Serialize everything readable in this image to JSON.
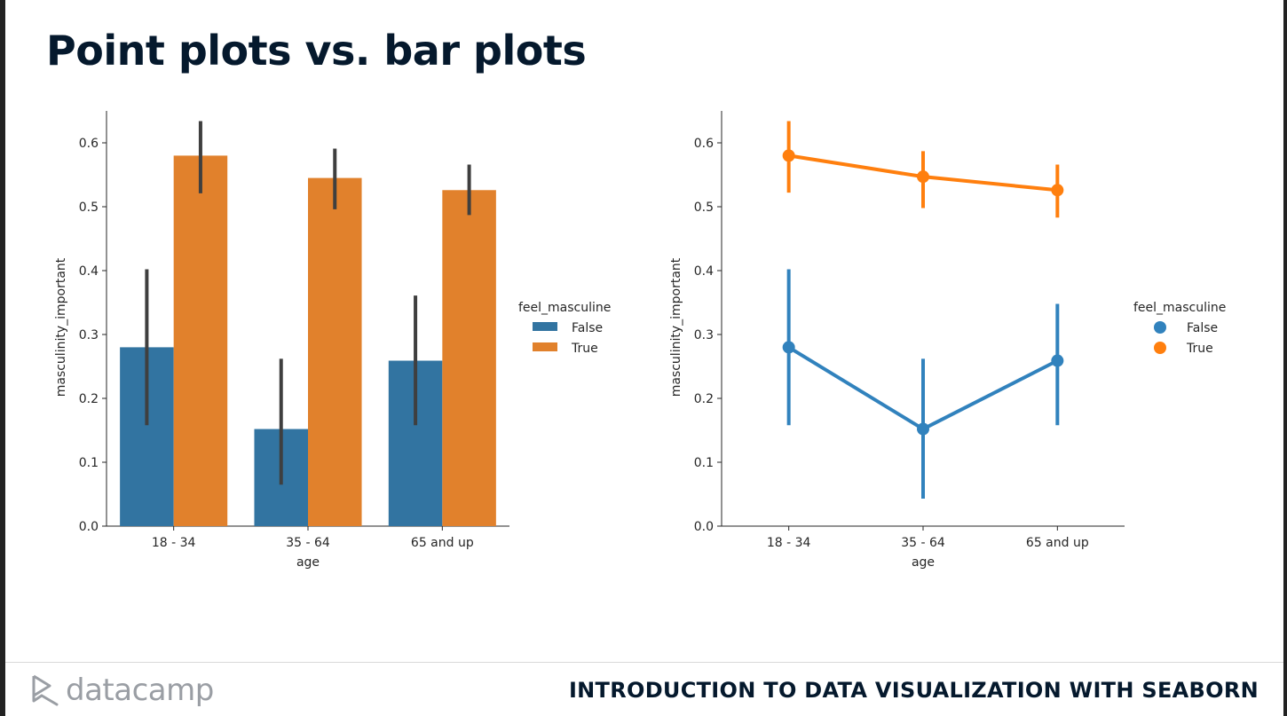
{
  "slide": {
    "title": "Point plots vs. bar plots",
    "brand": "datacamp",
    "course": "INTRODUCTION TO DATA VISUALIZATION WITH SEABORN"
  },
  "colors": {
    "false": "#3274a1",
    "true": "#e1812c",
    "error": "#3f3f3f",
    "pointFalse": "#3182bd",
    "pointTrue": "#ff7f0e"
  },
  "chart_data": [
    {
      "type": "bar",
      "categories": [
        "18 - 34",
        "35 - 64",
        "65 and up"
      ],
      "xlabel": "age",
      "ylabel": "masculinity_important",
      "ylim": [
        0,
        0.65
      ],
      "yticks": [
        "0.0",
        "0.1",
        "0.2",
        "0.3",
        "0.4",
        "0.5",
        "0.6"
      ],
      "legend": {
        "title": "feel_masculine",
        "position": "right"
      },
      "series": [
        {
          "name": "False",
          "values": [
            0.28,
            0.152,
            0.259
          ],
          "ci_low": [
            0.158,
            0.065,
            0.158
          ],
          "ci_high": [
            0.402,
            0.262,
            0.361
          ]
        },
        {
          "name": "True",
          "values": [
            0.58,
            0.545,
            0.526
          ],
          "ci_low": [
            0.521,
            0.496,
            0.487
          ],
          "ci_high": [
            0.634,
            0.591,
            0.566
          ]
        }
      ]
    },
    {
      "type": "line",
      "categories": [
        "18 - 34",
        "35 - 64",
        "65 and up"
      ],
      "xlabel": "age",
      "ylabel": "masculinity_important",
      "ylim": [
        0,
        0.65
      ],
      "yticks": [
        "0.0",
        "0.1",
        "0.2",
        "0.3",
        "0.4",
        "0.5",
        "0.6"
      ],
      "legend": {
        "title": "feel_masculine",
        "position": "right"
      },
      "series": [
        {
          "name": "False",
          "values": [
            0.28,
            0.152,
            0.259
          ],
          "ci_low": [
            0.158,
            0.043,
            0.158
          ],
          "ci_high": [
            0.402,
            0.262,
            0.348
          ]
        },
        {
          "name": "True",
          "values": [
            0.58,
            0.547,
            0.526
          ],
          "ci_low": [
            0.522,
            0.498,
            0.483
          ],
          "ci_high": [
            0.634,
            0.587,
            0.566
          ]
        }
      ]
    }
  ]
}
